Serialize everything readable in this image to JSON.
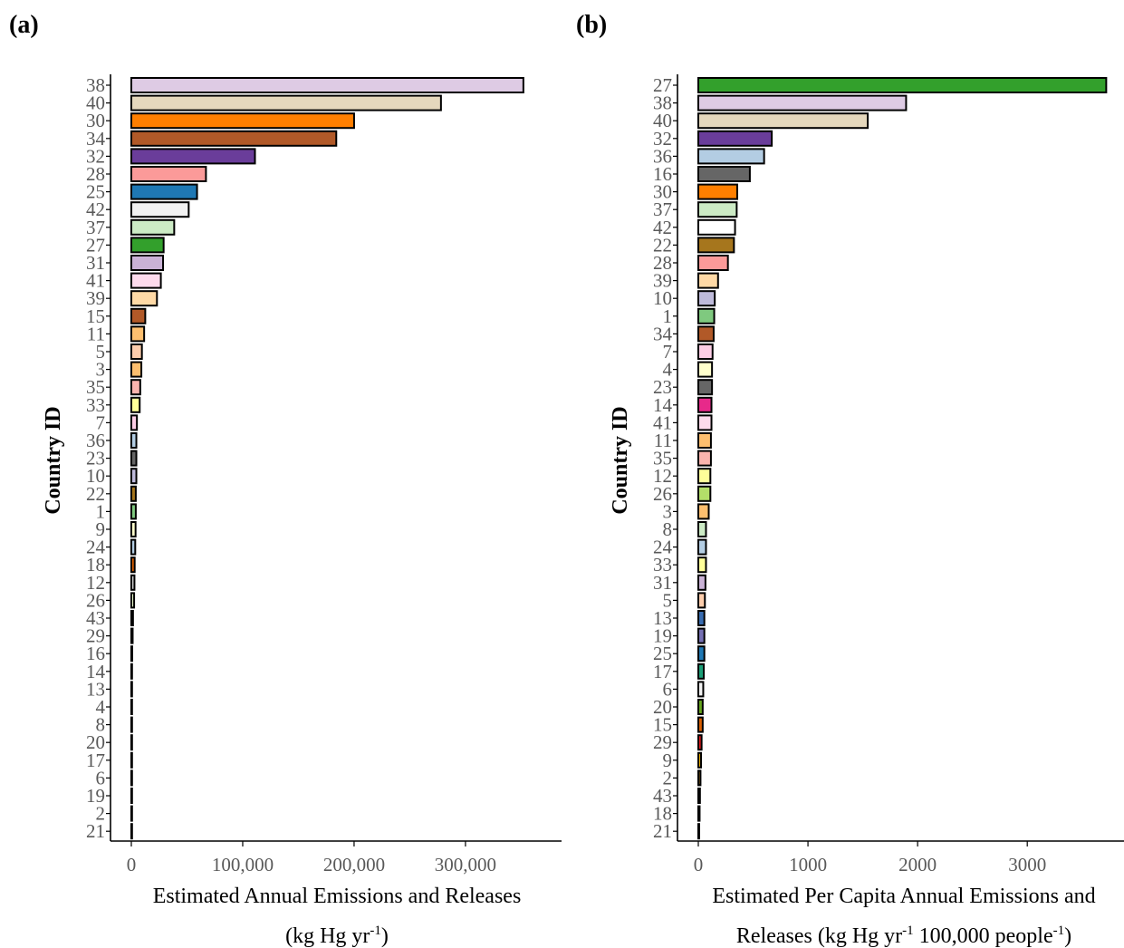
{
  "chart_data": [
    {
      "type": "bar",
      "orientation": "horizontal",
      "panel_label": "(a)",
      "ylabel": "Country ID",
      "xlabel_lines": [
        [
          "Estimated Annual Emissions and Releases"
        ],
        [
          "(kg Hg yr",
          "-1",
          ")"
        ]
      ],
      "xlim": [
        0,
        370000
      ],
      "xticks": [
        0,
        100000,
        200000,
        300000
      ],
      "xtick_labels": [
        "0",
        "100,000",
        "200,000",
        "300,000"
      ],
      "categories": [
        "38",
        "40",
        "30",
        "34",
        "32",
        "28",
        "25",
        "42",
        "37",
        "27",
        "31",
        "41",
        "39",
        "15",
        "11",
        "5",
        "3",
        "35",
        "33",
        "7",
        "36",
        "23",
        "10",
        "22",
        "1",
        "9",
        "24",
        "18",
        "12",
        "26",
        "43",
        "29",
        "16",
        "14",
        "13",
        "4",
        "8",
        "20",
        "17",
        "6",
        "19",
        "2",
        "21"
      ],
      "values": [
        352000,
        278000,
        200000,
        184000,
        111000,
        67000,
        59000,
        51500,
        38500,
        29000,
        28500,
        26500,
        23000,
        12500,
        11500,
        9500,
        9000,
        8000,
        7500,
        5000,
        4500,
        4500,
        4500,
        4000,
        4000,
        3800,
        3500,
        3000,
        2800,
        2500,
        1500,
        1200,
        800,
        600,
        500,
        400,
        350,
        300,
        250,
        200,
        150,
        100,
        50
      ],
      "colors": [
        "#decbe4",
        "#e5d8bd",
        "#ff7f00",
        "#b15928",
        "#6a3d9a",
        "#fb9a99",
        "#1f78b4",
        "#f2f2f2",
        "#ccebc5",
        "#33a02c",
        "#cab2d6",
        "#fddaec",
        "#fed9a6",
        "#b15928",
        "#fdbf6f",
        "#fdcdac",
        "#fdbf6f",
        "#fbb4ae",
        "#ffff99",
        "#fccde5",
        "#b3cde3",
        "#666666",
        "#bebada",
        "#a6761d",
        "#7fc97f",
        "#ffffcc",
        "#b3cde3",
        "#d95f02",
        "#cccccc",
        "#e6f5c9",
        "#386cb0",
        "#e31a1c",
        "#666666",
        "#e7298a",
        "#386cb0",
        "#fff2ae",
        "#ccebc5",
        "#66a61e",
        "#1b9e77",
        "#f2f2f2",
        "#7570b3",
        "#e6ab02",
        "#000000"
      ]
    },
    {
      "type": "bar",
      "orientation": "horizontal",
      "panel_label": "(b)",
      "ylabel": "Country ID",
      "xlabel_lines": [
        [
          "Estimated Per Capita Annual Emissions and"
        ],
        [
          "Releases (kg Hg yr",
          "-1",
          " 100,000 people",
          "-1",
          ")"
        ]
      ],
      "xlim": [
        0,
        3750
      ],
      "xticks": [
        0,
        1000,
        2000,
        3000
      ],
      "xtick_labels": [
        "0",
        "1000",
        "2000",
        "3000"
      ],
      "categories": [
        "27",
        "38",
        "40",
        "32",
        "36",
        "16",
        "30",
        "37",
        "42",
        "22",
        "28",
        "39",
        "10",
        "1",
        "34",
        "7",
        "4",
        "23",
        "14",
        "41",
        "11",
        "35",
        "12",
        "26",
        "3",
        "8",
        "24",
        "33",
        "31",
        "5",
        "13",
        "19",
        "25",
        "17",
        "6",
        "20",
        "15",
        "29",
        "9",
        "2",
        "43",
        "18",
        "21"
      ],
      "values": [
        3720,
        1895,
        1545,
        670,
        600,
        470,
        355,
        350,
        335,
        325,
        270,
        180,
        150,
        145,
        140,
        130,
        125,
        125,
        120,
        120,
        115,
        115,
        110,
        110,
        95,
        70,
        70,
        70,
        65,
        60,
        55,
        55,
        55,
        50,
        45,
        40,
        40,
        30,
        25,
        20,
        15,
        12,
        8
      ],
      "colors": [
        "#33a02c",
        "#decbe4",
        "#e5d8bd",
        "#6a3d9a",
        "#b3cde3",
        "#666666",
        "#ff7f00",
        "#ccebc5",
        "#ffffff",
        "#a6761d",
        "#fb9a99",
        "#fed9a6",
        "#bebada",
        "#7fc97f",
        "#b15928",
        "#fccde5",
        "#ffffcc",
        "#666666",
        "#e7298a",
        "#fddaec",
        "#fdbf6f",
        "#fbb4ae",
        "#ffff99",
        "#b3de69",
        "#fdbf6f",
        "#ccebc5",
        "#b3cde3",
        "#ffff99",
        "#cab2d6",
        "#fdcdac",
        "#386cb0",
        "#7570b3",
        "#1f78b4",
        "#1b9e77",
        "#f2f2f2",
        "#66a61e",
        "#d95f02",
        "#e31a1c",
        "#e6ab02",
        "#a6761d",
        "#666666",
        "#000000",
        "#f2f2f2"
      ]
    }
  ]
}
